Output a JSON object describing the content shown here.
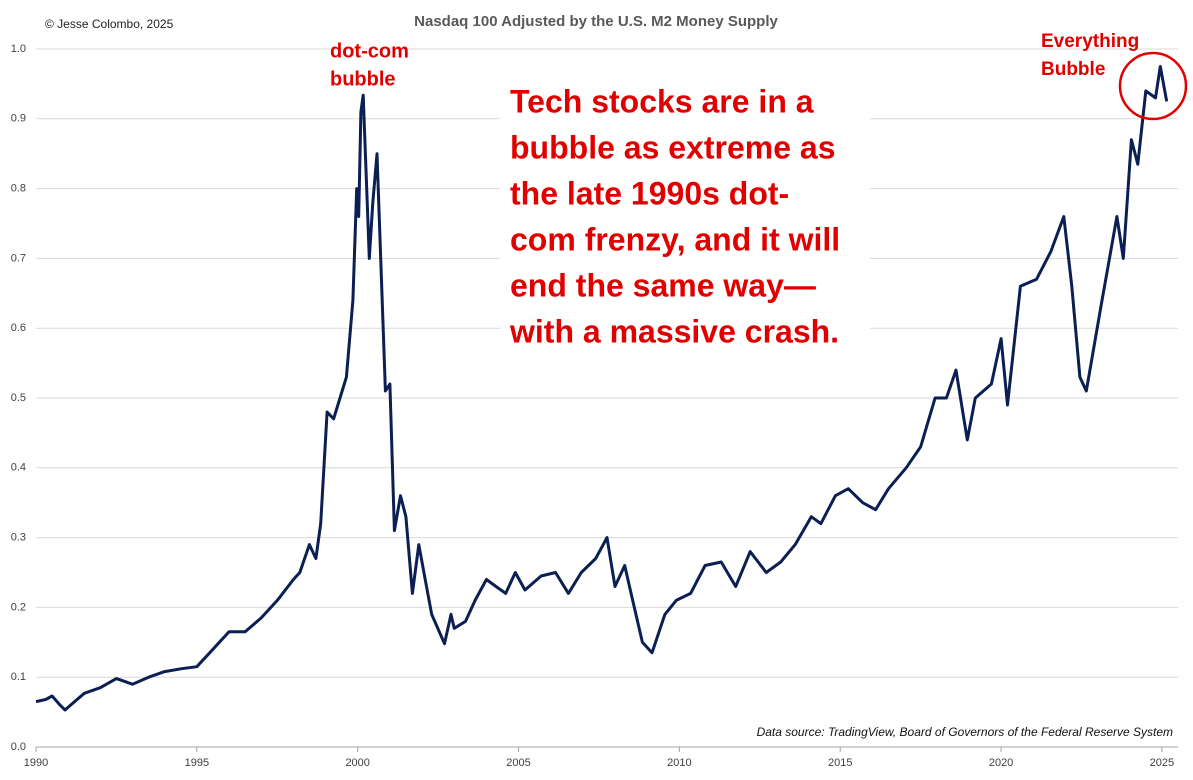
{
  "chart_data": {
    "type": "line",
    "title": "Nasdaq 100 Adjusted by the U.S. M2 Money Supply",
    "credit": "© Jesse Colombo, 2025",
    "source": "Data source: TradingView, Board of Governors of the Federal Reserve System",
    "annotations": [
      {
        "lines": [
          "dot-com",
          "bubble"
        ]
      },
      {
        "lines": [
          "Everything",
          "Bubble"
        ]
      },
      {
        "lines": [
          "Tech stocks are in a",
          "bubble as extreme as",
          "the late 1990s dot-",
          "com frenzy, and it will",
          "end the same way—",
          "with a massive crash."
        ]
      }
    ],
    "color": "#0b1f52",
    "x": [
      1990.0,
      1990.3,
      1990.5,
      1990.75,
      1990.9,
      1991.2,
      1991.5,
      1992.0,
      1992.5,
      1993.0,
      1993.5,
      1994.0,
      1994.5,
      1995.0,
      1995.5,
      1996.0,
      1996.5,
      1997.0,
      1997.5,
      1998.0,
      1998.2,
      1998.5,
      1998.7,
      1998.85,
      1999.05,
      1999.25,
      1999.45,
      1999.65,
      1999.85,
      1999.97,
      2000.03,
      2000.1,
      2000.17,
      2000.36,
      2000.47,
      2000.6,
      2000.73,
      2000.86,
      2001.0,
      2001.14,
      2001.33,
      2001.5,
      2001.7,
      2001.9,
      2002.1,
      2002.3,
      2002.7,
      2002.9,
      2003.0,
      2003.35,
      2003.65,
      2004.0,
      2004.3,
      2004.6,
      2004.9,
      2005.2,
      2005.7,
      2006.15,
      2006.55,
      2006.95,
      2007.4,
      2007.75,
      2008.0,
      2008.3,
      2008.55,
      2008.85,
      2009.15,
      2009.55,
      2009.9,
      2010.35,
      2010.8,
      2011.3,
      2011.75,
      2012.2,
      2012.7,
      2013.15,
      2013.6,
      2014.1,
      2014.4,
      2014.85,
      2015.25,
      2015.7,
      2016.1,
      2016.5,
      2017.05,
      2017.5,
      2017.95,
      2018.3,
      2018.6,
      2018.95,
      2019.2,
      2019.7,
      2020.0,
      2020.2,
      2020.6,
      2021.1,
      2021.55,
      2021.95,
      2022.2,
      2022.45,
      2022.65,
      2023.1,
      2023.6,
      2023.8,
      2024.05,
      2024.25,
      2024.5,
      2024.8,
      2024.95,
      2025.15
    ],
    "values": [
      0.065,
      0.068,
      0.073,
      0.06,
      0.053,
      0.065,
      0.077,
      0.085,
      0.098,
      0.09,
      0.1,
      0.108,
      0.112,
      0.115,
      0.14,
      0.165,
      0.165,
      0.185,
      0.21,
      0.24,
      0.25,
      0.29,
      0.27,
      0.32,
      0.48,
      0.47,
      0.5,
      0.53,
      0.64,
      0.8,
      0.76,
      0.91,
      0.934,
      0.7,
      0.78,
      0.85,
      0.68,
      0.51,
      0.52,
      0.31,
      0.36,
      0.33,
      0.22,
      0.29,
      0.24,
      0.19,
      0.148,
      0.19,
      0.17,
      0.18,
      0.21,
      0.24,
      0.23,
      0.22,
      0.25,
      0.225,
      0.245,
      0.25,
      0.22,
      0.25,
      0.27,
      0.3,
      0.23,
      0.26,
      0.21,
      0.15,
      0.135,
      0.19,
      0.21,
      0.22,
      0.26,
      0.265,
      0.23,
      0.28,
      0.25,
      0.265,
      0.29,
      0.33,
      0.32,
      0.36,
      0.37,
      0.35,
      0.34,
      0.37,
      0.4,
      0.43,
      0.5,
      0.5,
      0.54,
      0.44,
      0.5,
      0.52,
      0.585,
      0.49,
      0.66,
      0.67,
      0.71,
      0.76,
      0.66,
      0.53,
      0.51,
      0.63,
      0.76,
      0.7,
      0.87,
      0.835,
      0.94,
      0.93,
      0.975,
      0.925
    ],
    "xlim": [
      1990,
      2025.5
    ],
    "xticks": [
      1990,
      1995,
      2000,
      2005,
      2010,
      2015,
      2020,
      2025
    ],
    "ylim": [
      0,
      1.0
    ],
    "yticks": [
      {
        "value": 0,
        "label": "0.0"
      },
      0.1,
      0.2,
      0.3,
      0.4,
      0.5,
      0.6,
      0.7,
      0.8,
      0.9,
      {
        "value": 1,
        "label": "1.0"
      }
    ],
    "grid": true
  }
}
